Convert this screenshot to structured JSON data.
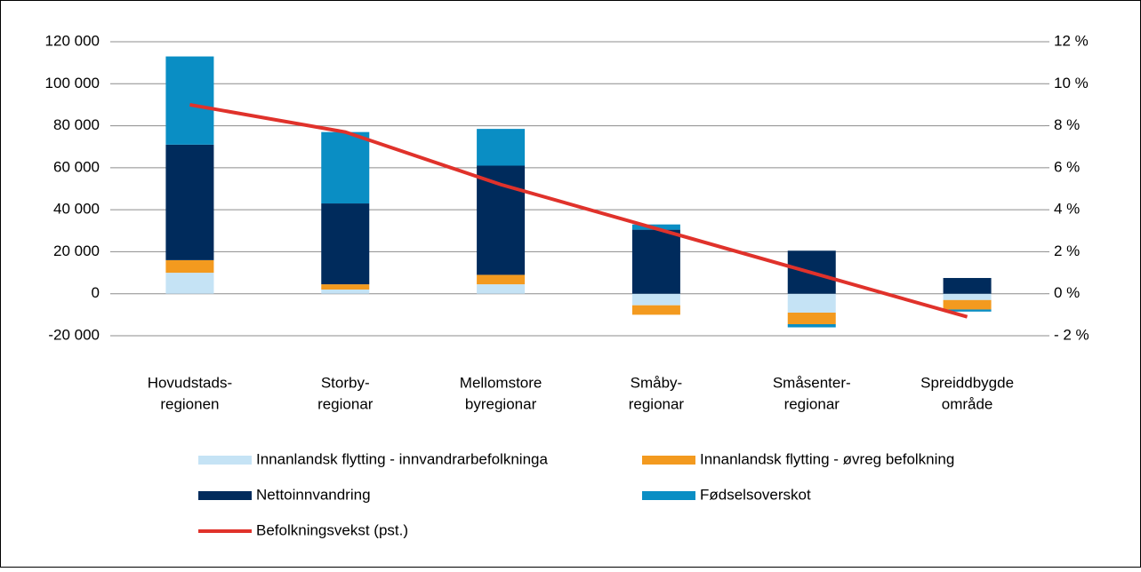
{
  "chart_data": {
    "type": "bar",
    "categories": [
      [
        "Hovudstads-",
        "regionen"
      ],
      [
        "Storby-",
        "regionar"
      ],
      [
        "Mellomstore",
        "byregionar"
      ],
      [
        "Småby-",
        "regionar"
      ],
      [
        "Småsenter-",
        "regionar"
      ],
      [
        "Spreiddbygde",
        "område"
      ]
    ],
    "series": [
      {
        "name": "Innanlandsk flytting - innvandrarbefolkninga",
        "color": "#c5e3f5",
        "values": [
          10000,
          2000,
          4500,
          -5500,
          -9000,
          -3000
        ]
      },
      {
        "name": "Innanlandsk flytting - øvreg befolkning",
        "color": "#f39a1f",
        "values": [
          6000,
          2500,
          4500,
          -4500,
          -5500,
          -4500
        ]
      },
      {
        "name": "Nettoinnvandring",
        "color": "#002b5c",
        "values": [
          55000,
          38500,
          52000,
          30500,
          20500,
          7500
        ]
      },
      {
        "name": "Fødselsoverskot",
        "color": "#0a8ec4",
        "values": [
          42000,
          34000,
          17500,
          2500,
          -1500,
          -1000
        ]
      },
      {
        "name": "Befolkningsvekst (pst.)",
        "color": "#e0322b",
        "type": "line",
        "axis": "y2",
        "values": [
          9.0,
          7.7,
          5.2,
          3.1,
          1.0,
          -1.1
        ]
      }
    ],
    "ylim": [
      -20000,
      120000
    ],
    "yticks": [
      {
        "value": -20000,
        "label": "-20 000"
      },
      0,
      {
        "value": 20000,
        "label": "20 000"
      },
      {
        "value": 40000,
        "label": "40 000"
      },
      {
        "value": 60000,
        "label": "60 000"
      },
      {
        "value": 80000,
        "label": "80 000"
      },
      {
        "value": 100000,
        "label": "100 000"
      },
      {
        "value": 120000,
        "label": "120 000"
      }
    ],
    "y2lim": [
      -2,
      12
    ],
    "y2ticks": [
      {
        "value": -2,
        "label": "- 2 %"
      },
      {
        "value": 0,
        "label": "0 %"
      },
      {
        "value": 2,
        "label": "2 %"
      },
      {
        "value": 4,
        "label": "4 %"
      },
      {
        "value": 6,
        "label": "6 %"
      },
      {
        "value": 8,
        "label": "8 %"
      },
      {
        "value": 10,
        "label": "10 %"
      },
      {
        "value": 12,
        "label": "12 %"
      }
    ],
    "grid": true
  }
}
